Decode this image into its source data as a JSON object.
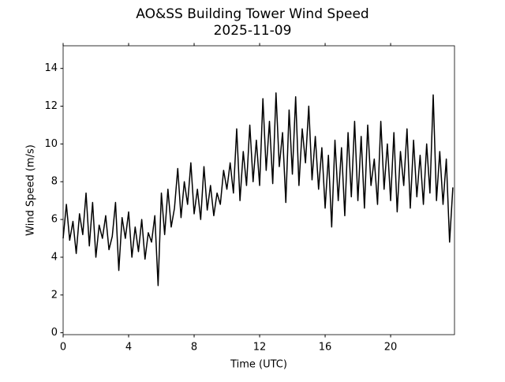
{
  "chart_data": {
    "type": "line",
    "title": "AO&SS Building Tower Wind Speed",
    "subtitle": "2025-11-09",
    "x_label": "Time (UTC)",
    "y_label": "Wind Speed (m/s)",
    "x": [
      0,
      0.2,
      0.4,
      0.6,
      0.8,
      1,
      1.2,
      1.4,
      1.6,
      1.8,
      2,
      2.2,
      2.4,
      2.6,
      2.8,
      3,
      3.2,
      3.4,
      3.6,
      3.8,
      4,
      4.2,
      4.4,
      4.6,
      4.8,
      5,
      5.2,
      5.4,
      5.6,
      5.8,
      6,
      6.2,
      6.4,
      6.6,
      6.8,
      7,
      7.2,
      7.4,
      7.6,
      7.8,
      8,
      8.2,
      8.4,
      8.6,
      8.8,
      9,
      9.2,
      9.4,
      9.6,
      9.8,
      10,
      10.2,
      10.4,
      10.6,
      10.8,
      11,
      11.2,
      11.4,
      11.6,
      11.8,
      12,
      12.2,
      12.4,
      12.6,
      12.8,
      13,
      13.2,
      13.4,
      13.6,
      13.8,
      14,
      14.2,
      14.4,
      14.6,
      14.8,
      15,
      15.2,
      15.4,
      15.6,
      15.8,
      16,
      16.2,
      16.4,
      16.6,
      16.8,
      17,
      17.2,
      17.4,
      17.6,
      17.8,
      18,
      18.2,
      18.4,
      18.6,
      18.8,
      19,
      19.2,
      19.4,
      19.6,
      19.8,
      20,
      20.2,
      20.4,
      20.6,
      20.8,
      21,
      21.2,
      21.4,
      21.6,
      21.8,
      22,
      22.2,
      22.4,
      22.6,
      22.8,
      23,
      23.2,
      23.4,
      23.6,
      23.8
    ],
    "series": [
      {
        "color": "#000000",
        "values": [
          5.0,
          6.8,
          4.9,
          5.9,
          4.2,
          6.3,
          5.2,
          7.4,
          4.6,
          6.9,
          4.0,
          5.7,
          5.0,
          6.2,
          4.4,
          5.1,
          6.9,
          3.3,
          6.1,
          5.0,
          6.4,
          4.0,
          5.6,
          4.3,
          6.0,
          3.9,
          5.3,
          4.8,
          6.2,
          2.5,
          7.4,
          5.2,
          7.6,
          5.6,
          6.6,
          8.7,
          6.1,
          8.0,
          6.8,
          9.0,
          6.3,
          7.6,
          6.0,
          8.8,
          6.5,
          7.8,
          6.2,
          7.4,
          6.8,
          8.6,
          7.6,
          9.0,
          7.4,
          10.8,
          7.0,
          9.6,
          7.8,
          11.0,
          8.0,
          10.2,
          7.8,
          12.4,
          8.6,
          11.2,
          7.9,
          12.7,
          8.8,
          10.6,
          6.9,
          11.8,
          8.4,
          12.5,
          7.8,
          10.8,
          9.0,
          12.0,
          8.1,
          10.4,
          7.6,
          9.8,
          6.6,
          9.4,
          5.6,
          10.2,
          7.0,
          9.8,
          6.2,
          10.6,
          7.2,
          11.2,
          7.0,
          10.4,
          6.6,
          11.0,
          7.8,
          9.2,
          6.8,
          11.2,
          7.6,
          10.0,
          7.0,
          10.6,
          6.4,
          9.6,
          7.8,
          10.8,
          6.6,
          10.2,
          7.2,
          9.4,
          6.8,
          10.0,
          7.4,
          12.6,
          7.0,
          9.6,
          6.8,
          9.2,
          4.8,
          7.7
        ]
      }
    ],
    "xlim": [
      0,
      23.9
    ],
    "ylim": [
      -0.1,
      15.2
    ],
    "xticks": [
      0,
      4,
      8,
      12,
      16,
      20
    ],
    "yticks": [
      0,
      2,
      4,
      6,
      8,
      10,
      12,
      14
    ],
    "grid": false
  }
}
